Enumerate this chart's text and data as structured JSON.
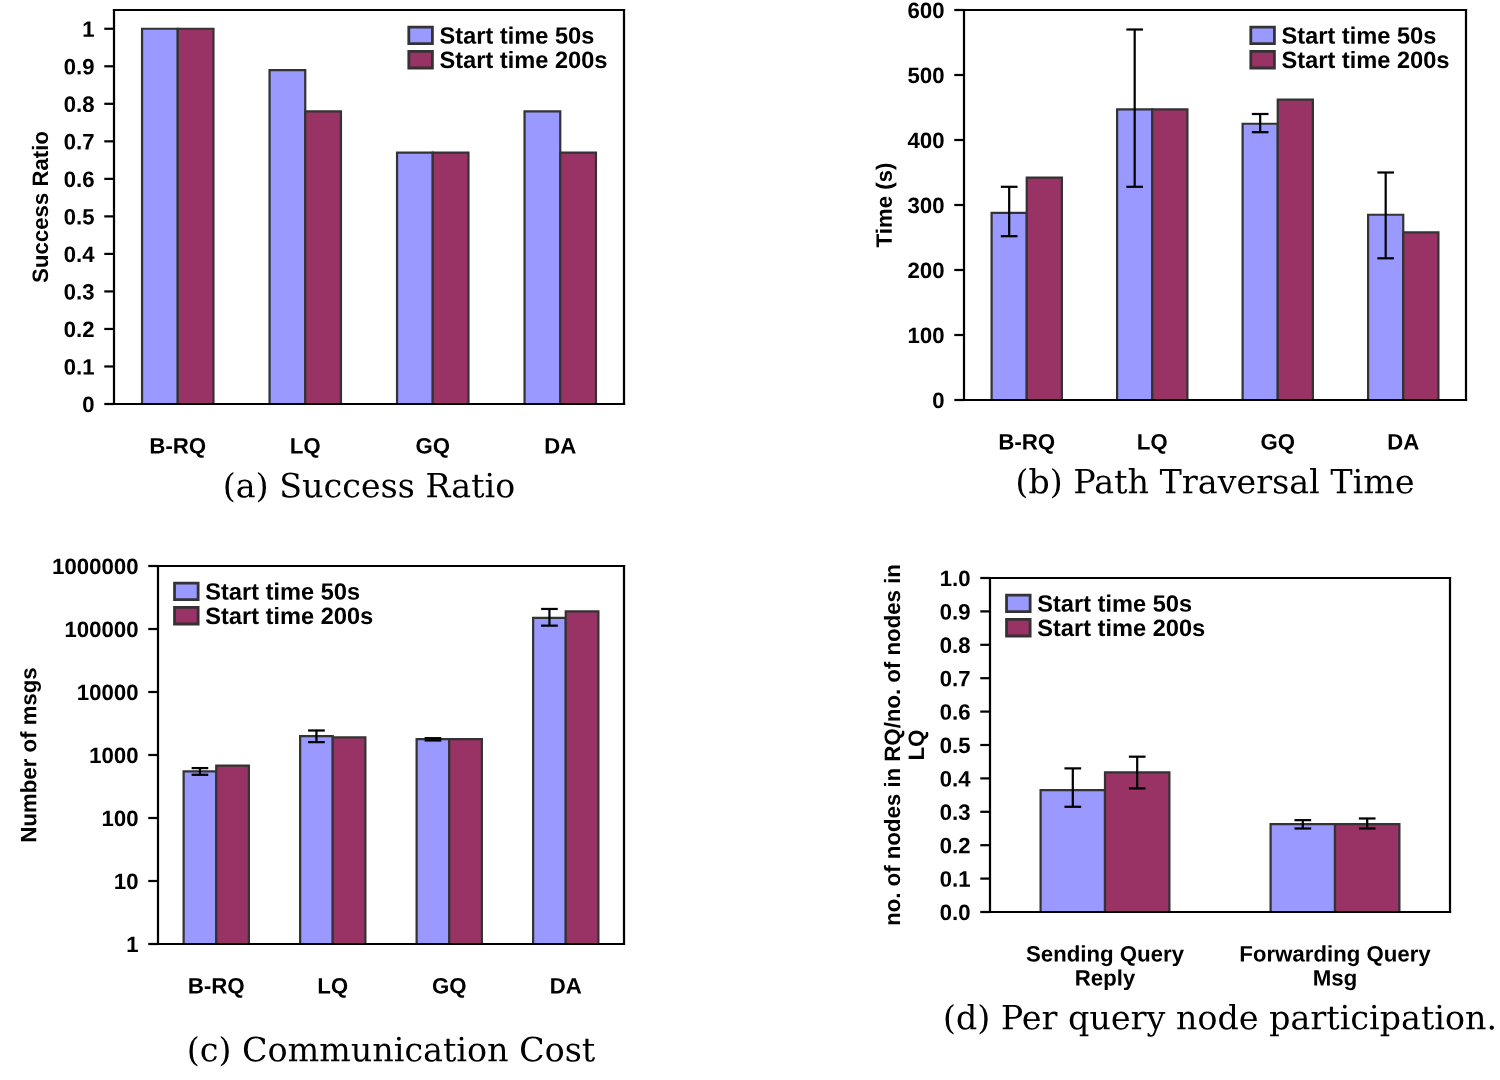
{
  "chart_data": [
    {
      "type": "bar",
      "title": "(a) Success Ratio",
      "ylabel": "Success Ratio",
      "categories": [
        "B-RQ",
        "LQ",
        "GQ",
        "DA"
      ],
      "series": [
        {
          "name": "Start time 50s",
          "color": "#9999ff",
          "values": [
            1,
            0.89,
            0.67,
            0.78
          ]
        },
        {
          "name": "Start time 200s",
          "color": "#993366",
          "values": [
            1,
            0.78,
            0.67,
            0.67
          ]
        }
      ],
      "ylim": [
        0,
        1.05
      ],
      "yticks": [
        0,
        0.1,
        0.2,
        0.3,
        0.4,
        0.5,
        0.6,
        0.7,
        0.8,
        0.9,
        1
      ],
      "legend": "top right"
    },
    {
      "type": "bar",
      "title": "(b) Path Traversal Time",
      "ylabel": "Time (s)",
      "categories": [
        "B-RQ",
        "LQ",
        "GQ",
        "DA"
      ],
      "series": [
        {
          "name": "Start time 50s",
          "color": "#9999ff",
          "values": [
            288,
            447,
            425,
            285
          ],
          "errors": [
            [
              252,
              328
            ],
            [
              328,
              570
            ],
            [
              412,
              440
            ],
            [
              218,
              350
            ]
          ]
        },
        {
          "name": "Start time 200s",
          "color": "#993366",
          "values": [
            342,
            447,
            462,
            258
          ]
        }
      ],
      "ylim": [
        0,
        600
      ],
      "yticks": [
        0,
        100,
        200,
        300,
        400,
        500,
        600
      ],
      "legend": "top right"
    },
    {
      "type": "bar",
      "title": "(c) Communication Cost",
      "ylabel": "Number of msgs",
      "categories": [
        "B-RQ",
        "LQ",
        "GQ",
        "DA"
      ],
      "log": true,
      "series": [
        {
          "name": "Start time 50s",
          "color": "#9999ff",
          "values": [
            550,
            2000,
            1780,
            150000
          ],
          "errors": [
            [
              485,
              620
            ],
            [
              1600,
              2450
            ],
            [
              1700,
              1850
            ],
            [
              113000,
              208000
            ]
          ]
        },
        {
          "name": "Start time 200s",
          "color": "#993366",
          "values": [
            680,
            1900,
            1780,
            190000
          ]
        }
      ],
      "ylim": [
        1,
        1000000
      ],
      "yticks": [
        1,
        10,
        100,
        1000,
        10000,
        100000,
        1000000
      ],
      "legend": "top left"
    },
    {
      "type": "bar",
      "title": "(d) Per query node participation.",
      "ylabel": "no. of nodes in RQ/no. of nodes in LQ",
      "categories": [
        "Sending Query Reply",
        "Forwarding Query Msg"
      ],
      "series": [
        {
          "name": "Start time 50s",
          "color": "#9999ff",
          "values": [
            0.365,
            0.263
          ],
          "errors": [
            [
              0.315,
              0.43
            ],
            [
              0.25,
              0.275
            ]
          ]
        },
        {
          "name": "Start time 200s",
          "color": "#993366",
          "values": [
            0.418,
            0.263
          ],
          "errors": [
            [
              0.37,
              0.465
            ],
            [
              0.25,
              0.28
            ]
          ]
        }
      ],
      "ylim": [
        0,
        1
      ],
      "yticks": [
        {
          "value": 0,
          "label": "0.0"
        },
        {
          "value": 0.1,
          "label": "0.1"
        },
        {
          "value": 0.2,
          "label": "0.2"
        },
        {
          "value": 0.3,
          "label": "0.3"
        },
        {
          "value": 0.4,
          "label": "0.4"
        },
        {
          "value": 0.5,
          "label": "0.5"
        },
        {
          "value": 0.6,
          "label": "0.6"
        },
        {
          "value": 0.7,
          "label": "0.7"
        },
        {
          "value": 0.8,
          "label": "0.8"
        },
        {
          "value": 0.9,
          "label": "0.9"
        },
        {
          "value": 1,
          "label": "1.0"
        }
      ],
      "legend": "top left"
    }
  ]
}
